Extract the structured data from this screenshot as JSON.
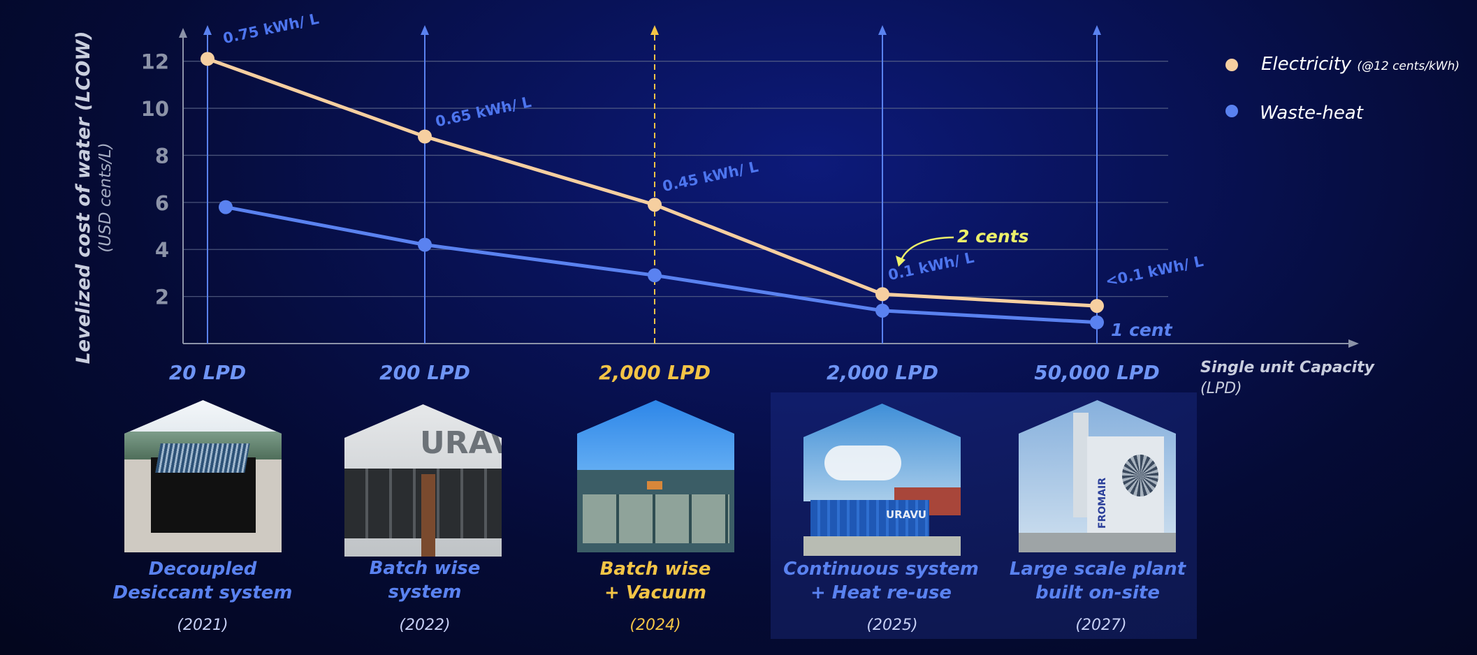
{
  "chart_data": {
    "type": "line",
    "ylabel": "Levelized cost of water (LCOW)",
    "ylabel_unit": "(USD cents/L)",
    "xlabel": "Single unit Capacity",
    "xlabel_unit": "(LPD)",
    "yticks": [
      "2",
      "4",
      "6",
      "8",
      "10",
      "12"
    ],
    "ylim": [
      0,
      13
    ],
    "grid": true,
    "legend_position": "top-right",
    "categories": [
      "20 LPD",
      "200 LPD",
      "2,000 LPD",
      "2,000 LPD",
      "50,000 LPD"
    ],
    "highlight_category_index": 2,
    "series": [
      {
        "name": "Electricity",
        "note": "(@12 cents/kWh)",
        "color": "#f6cfa0",
        "values": [
          12.1,
          8.8,
          5.9,
          2.1,
          1.6
        ]
      },
      {
        "name": "Waste-heat",
        "color": "#5a82f0",
        "values": [
          5.8,
          4.2,
          2.9,
          1.4,
          0.9
        ]
      }
    ],
    "energy_labels": [
      "0.75 kWh/ L",
      "0.65 kWh/ L",
      "0.45 kWh/ L",
      "0.1 kWh/ L",
      "<0.1 kWh/ L"
    ],
    "annotations": {
      "two_cents": "2 cents",
      "one_cent": "1 cent"
    }
  },
  "systems": [
    {
      "caption": [
        "Decoupled",
        "Desiccant system"
      ],
      "year": "(2021)",
      "highlight": false
    },
    {
      "caption": [
        "Batch wise",
        "system"
      ],
      "year": "(2022)",
      "highlight": false
    },
    {
      "caption": [
        "Batch wise",
        "+ Vacuum"
      ],
      "year": "(2024)",
      "highlight": true
    },
    {
      "caption": [
        "Continuous system",
        "+ Heat re-use"
      ],
      "year": "(2025)",
      "highlight": false
    },
    {
      "caption": [
        "Large scale plant",
        "built on-site"
      ],
      "year": "(2027)",
      "highlight": false
    }
  ],
  "photo_text": {
    "brand_1": "URAVU",
    "brand_2": "FROMAIR",
    "brand_3": "URAVU"
  },
  "colors": {
    "electricity": "#f6cfa0",
    "waste_heat": "#5a82f0",
    "highlight": "#f3c446",
    "annotation_yellow": "#ecf06a",
    "axis_text": "#8c93a8",
    "caption_blue": "#5a82f0"
  }
}
